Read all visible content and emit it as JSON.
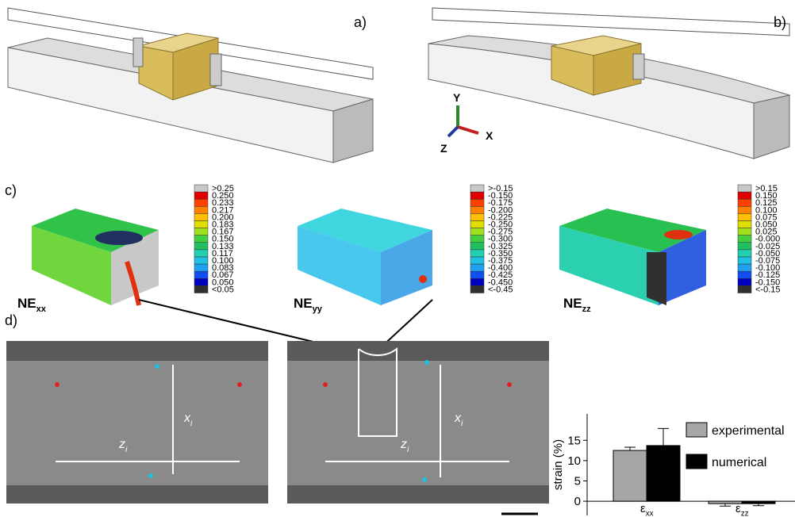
{
  "panels": {
    "a": "a)",
    "b": "b)",
    "c": "c)",
    "d": "d)"
  },
  "axes": {
    "y": "Y",
    "x": "X",
    "z": "Z"
  },
  "colorbars": [
    {
      "name": "NE",
      "sub": "xx",
      "ticks": [
        ">0.25",
        "0.250",
        "0.233",
        "0.217",
        "0.200",
        "0.183",
        "0.167",
        "0.150",
        "0.133",
        "0.117",
        "0.100",
        "0.083",
        "0.067",
        "0.050",
        "<0.05"
      ]
    },
    {
      "name": "NE",
      "sub": "yy",
      "ticks": [
        ">-0.15",
        "-0.150",
        "-0.175",
        "-0.200",
        "-0.225",
        "-0.250",
        "-0.275",
        "-0.300",
        "-0.325",
        "-0.350",
        "-0.375",
        "-0.400",
        "-0.425",
        "-0.450",
        "<-0.45"
      ]
    },
    {
      "name": "NE",
      "sub": "zz",
      "ticks": [
        ">0.15",
        "0.150",
        "0.125",
        "0.100",
        "0.075",
        "0.050",
        "0.025",
        "-0.000",
        "-0.025",
        "-0.050",
        "-0.075",
        "-0.100",
        "-0.125",
        "-0.150",
        "<-0.15"
      ]
    }
  ],
  "micrographs": [
    {
      "z": "z",
      "z_sub": "i",
      "x": "x",
      "x_sub": "i"
    },
    {
      "z": "z",
      "z_sub": "i",
      "x": "x",
      "x_sub": "i"
    }
  ],
  "chart_data": {
    "type": "bar",
    "y_label": "strain (%)",
    "categories": [
      "ε",
      "ε"
    ],
    "category_subscripts": [
      "xx",
      "zz"
    ],
    "series": [
      {
        "name": "experimental",
        "color": "#a6a6a6",
        "values": [
          12.5,
          -0.6
        ],
        "errors": [
          0.8,
          0.6
        ]
      },
      {
        "name": "numerical",
        "color": "#000000",
        "values": [
          13.7,
          -0.6
        ],
        "errors": [
          4.2,
          0.5
        ]
      }
    ],
    "ylim": [
      -3.5,
      21.5
    ],
    "yticks": [
      0,
      5,
      10,
      15
    ],
    "legend": "upper right"
  }
}
